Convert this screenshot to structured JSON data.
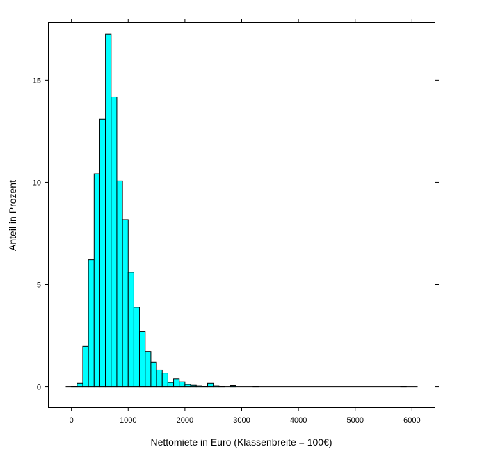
{
  "chart_data": {
    "type": "bar",
    "title": "",
    "xlabel": "Nettomiete in Euro (Klassenbreite = 100€)",
    "ylabel": "Anteil in Prozent",
    "bin_width": 100,
    "xlim": [
      -400,
      6400
    ],
    "ylim": [
      -1,
      17.8
    ],
    "x_ticks": [
      0,
      1000,
      2000,
      3000,
      4000,
      5000,
      6000
    ],
    "y_ticks": [
      0,
      5,
      10,
      15
    ],
    "grid": false,
    "bar_fill": "#00ffff",
    "bar_stroke": "#000000",
    "bin_starts": [
      -100,
      0,
      100,
      200,
      300,
      400,
      500,
      600,
      700,
      800,
      900,
      1000,
      1100,
      1200,
      1300,
      1400,
      1500,
      1600,
      1700,
      1800,
      1900,
      2000,
      2100,
      2200,
      2300,
      2400,
      2500,
      2600,
      2700,
      2800,
      2900,
      3000,
      3100,
      3200,
      3300,
      3400,
      3500,
      3600,
      3700,
      3800,
      3900,
      4000,
      4100,
      4200,
      4300,
      4400,
      4500,
      4600,
      4700,
      4800,
      4900,
      5000,
      5100,
      5200,
      5300,
      5400,
      5500,
      5600,
      5700,
      5800,
      5900,
      6000
    ],
    "values": [
      0,
      0.02,
      0.18,
      1.98,
      6.22,
      10.42,
      13.1,
      17.25,
      14.18,
      10.07,
      8.18,
      5.6,
      3.9,
      2.72,
      1.73,
      1.2,
      0.82,
      0.68,
      0.22,
      0.4,
      0.25,
      0.12,
      0.08,
      0.05,
      0.02,
      0.18,
      0.05,
      0.02,
      0,
      0.07,
      0,
      0,
      0,
      0.03,
      0,
      0,
      0,
      0,
      0,
      0,
      0,
      0,
      0,
      0,
      0,
      0,
      0,
      0,
      0,
      0,
      0,
      0,
      0,
      0,
      0,
      0,
      0,
      0,
      0,
      0.03,
      0,
      0
    ]
  }
}
